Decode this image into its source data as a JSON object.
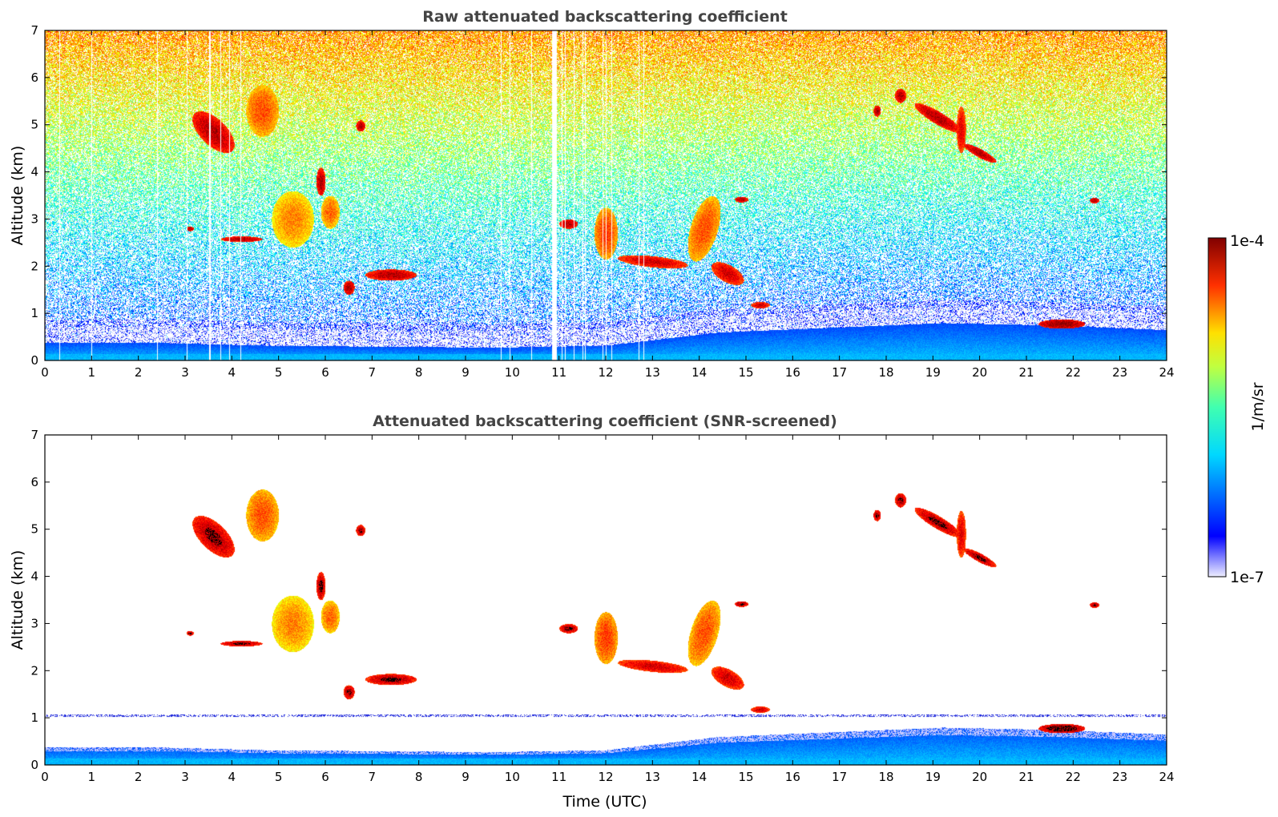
{
  "chart_data": [
    {
      "type": "heatmap",
      "title": "Raw attenuated backscattering coefficient",
      "xlabel": "",
      "ylabel": "Altitude (km)",
      "xlim": [
        0,
        24
      ],
      "ylim": [
        0,
        7
      ],
      "xticks": [
        0,
        1,
        2,
        3,
        4,
        5,
        6,
        7,
        8,
        9,
        10,
        11,
        12,
        13,
        14,
        15,
        16,
        17,
        18,
        19,
        20,
        21,
        22,
        23,
        24
      ],
      "yticks": [
        0,
        1,
        2,
        3,
        4,
        5,
        6,
        7
      ],
      "mode": "raw",
      "features": [
        {
          "name": "boundary-layer",
          "t0": 0,
          "t1": 24,
          "h": [
            0.38,
            0.38,
            0.32,
            0.3,
            0.28,
            0.32,
            0.6,
            0.7,
            0.8,
            0.75,
            0.65
          ]
        },
        {
          "name": "cloud-1",
          "t": 3.6,
          "h": 4.85,
          "dt": 0.45,
          "dh": 0.35,
          "slope": -0.6,
          "c": 0.95
        },
        {
          "name": "cloud-2",
          "t": 4.65,
          "h": 5.3,
          "dt": 0.35,
          "dh": 0.55,
          "slope": 0,
          "c": 0.8
        },
        {
          "name": "cloud-3",
          "t": 5.3,
          "h": 3.0,
          "dt": 0.45,
          "dh": 0.6,
          "slope": 0,
          "c": 0.75
        },
        {
          "name": "cloud-4",
          "t": 6.1,
          "h": 3.15,
          "dt": 0.2,
          "dh": 0.35,
          "slope": 0,
          "c": 0.78
        },
        {
          "name": "cloud-5",
          "t": 5.9,
          "h": 3.8,
          "dt": 0.1,
          "dh": 0.3,
          "slope": 0,
          "c": 0.95
        },
        {
          "name": "cloud-6",
          "t": 4.2,
          "h": 2.58,
          "dt": 0.45,
          "dh": 0.06,
          "slope": 0,
          "c": 0.95
        },
        {
          "name": "cloud-7",
          "t": 3.1,
          "h": 2.8,
          "dt": 0.08,
          "dh": 0.05,
          "slope": 0,
          "c": 0.95
        },
        {
          "name": "cloud-8",
          "t": 6.5,
          "h": 1.55,
          "dt": 0.12,
          "dh": 0.15,
          "slope": 0,
          "c": 0.95
        },
        {
          "name": "cloud-9",
          "t": 7.4,
          "h": 1.82,
          "dt": 0.55,
          "dh": 0.12,
          "slope": 0,
          "c": 0.95
        },
        {
          "name": "cloud-10",
          "t": 6.75,
          "h": 4.98,
          "dt": 0.1,
          "dh": 0.12,
          "slope": 0,
          "c": 0.95
        },
        {
          "name": "cloud-11",
          "t": 11.2,
          "h": 2.9,
          "dt": 0.2,
          "dh": 0.1,
          "slope": 0,
          "c": 0.95
        },
        {
          "name": "cloud-12",
          "t": 12.0,
          "h": 2.7,
          "dt": 0.25,
          "dh": 0.55,
          "slope": 0,
          "c": 0.82
        },
        {
          "name": "cloud-13",
          "t": 13.0,
          "h": 2.1,
          "dt": 0.75,
          "dh": 0.12,
          "slope": -0.1,
          "c": 0.92
        },
        {
          "name": "cloud-14",
          "t": 14.1,
          "h": 2.8,
          "dt": 0.35,
          "dh": 0.6,
          "slope": 1.0,
          "c": 0.8
        },
        {
          "name": "cloud-15",
          "t": 14.6,
          "h": 1.85,
          "dt": 0.35,
          "dh": 0.2,
          "slope": -0.4,
          "c": 0.92
        },
        {
          "name": "cloud-16",
          "t": 15.3,
          "h": 1.18,
          "dt": 0.2,
          "dh": 0.07,
          "slope": 0,
          "c": 0.92
        },
        {
          "name": "cloud-17",
          "t": 14.9,
          "h": 3.42,
          "dt": 0.15,
          "dh": 0.06,
          "slope": 0,
          "c": 0.95
        },
        {
          "name": "cloud-18",
          "t": 17.8,
          "h": 5.3,
          "dt": 0.08,
          "dh": 0.12,
          "slope": 0,
          "c": 0.95
        },
        {
          "name": "cloud-19",
          "t": 18.3,
          "h": 5.62,
          "dt": 0.12,
          "dh": 0.15,
          "slope": 0,
          "c": 0.95
        },
        {
          "name": "cloud-20",
          "t": 19.1,
          "h": 5.15,
          "dt": 0.5,
          "dh": 0.15,
          "slope": -0.55,
          "c": 0.95
        },
        {
          "name": "cloud-21",
          "t": 20.0,
          "h": 4.4,
          "dt": 0.35,
          "dh": 0.1,
          "slope": -0.5,
          "c": 0.95
        },
        {
          "name": "cloud-22",
          "t": 19.6,
          "h": 4.9,
          "dt": 0.1,
          "dh": 0.5,
          "slope": 0,
          "c": 0.9
        },
        {
          "name": "cloud-23",
          "t": 22.45,
          "h": 3.4,
          "dt": 0.1,
          "dh": 0.06,
          "slope": 0,
          "c": 0.95
        },
        {
          "name": "cloud-24",
          "t": 21.75,
          "h": 0.78,
          "dt": 0.5,
          "dh": 0.1,
          "slope": 0,
          "c": 0.98
        }
      ]
    },
    {
      "type": "heatmap",
      "title": "Attenuated backscattering coefficient (SNR-screened)",
      "xlabel": "Time (UTC)",
      "ylabel": "Altitude (km)",
      "xlim": [
        0,
        24
      ],
      "ylim": [
        0,
        7
      ],
      "xticks": [
        0,
        1,
        2,
        3,
        4,
        5,
        6,
        7,
        8,
        9,
        10,
        11,
        12,
        13,
        14,
        15,
        16,
        17,
        18,
        19,
        20,
        21,
        22,
        23,
        24
      ],
      "yticks": [
        0,
        1,
        2,
        3,
        4,
        5,
        6,
        7
      ],
      "mode": "screened",
      "features": "same as raw panel; noise removed"
    }
  ],
  "colorbar": {
    "label": "1/m/sr",
    "max_label": "1e-4",
    "min_label": "1e-7",
    "vmin": 1e-07,
    "vmax": 0.0001,
    "colormap": "jet"
  }
}
